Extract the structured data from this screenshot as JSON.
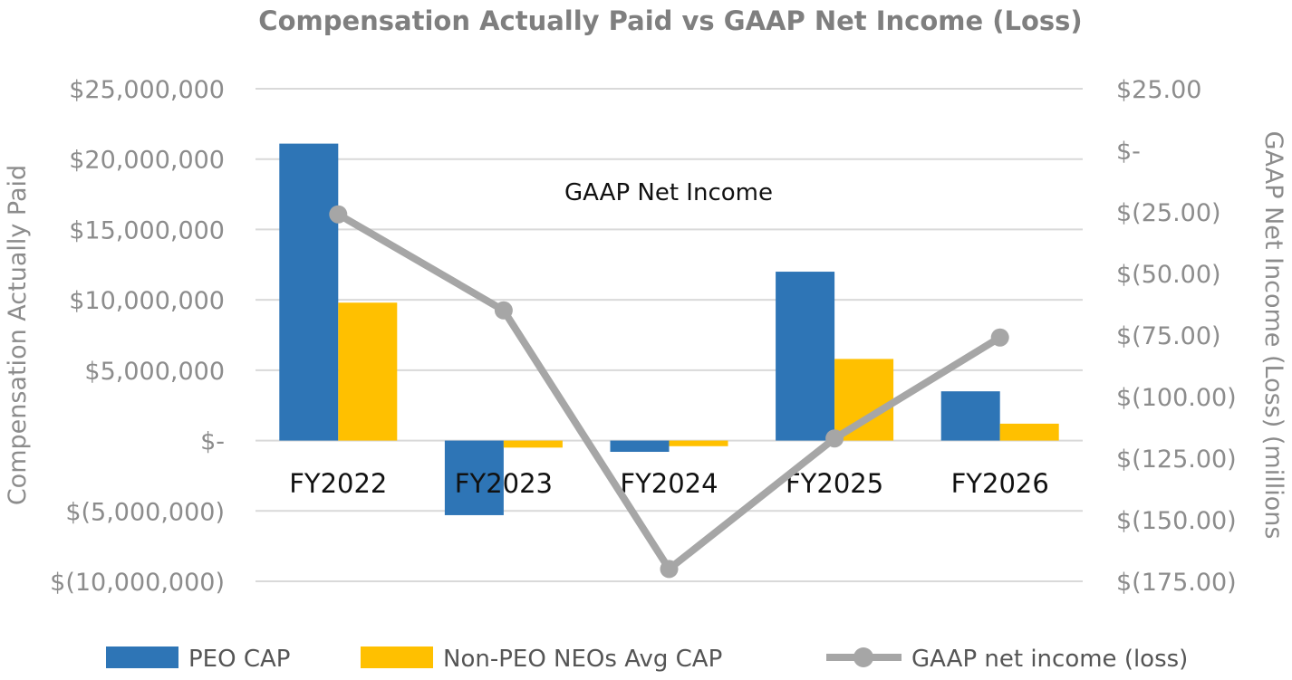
{
  "chart_data": {
    "type": "bar",
    "title": "Compensation Actually Paid vs GAAP Net Income (Loss)",
    "categories": [
      "FY2022",
      "FY2023",
      "FY2024",
      "FY2025",
      "FY2026"
    ],
    "series": [
      {
        "name": "PEO CAP",
        "kind": "bar",
        "axis": "left",
        "color": "#2e75b6",
        "values": [
          21100000,
          -5300000,
          -800000,
          12000000,
          3500000
        ]
      },
      {
        "name": "Non-PEO NEOs Avg CAP",
        "kind": "bar",
        "axis": "left",
        "color": "#ffc000",
        "values": [
          9800000,
          -500000,
          -400000,
          5800000,
          1200000
        ]
      },
      {
        "name": "GAAP net income (loss)",
        "kind": "line",
        "axis": "right",
        "color": "#a6a6a6",
        "values": [
          -26,
          -65,
          -170,
          -117,
          -76
        ]
      }
    ],
    "ylabel": "Compensation Actually Paid",
    "ylim": [
      -10000000,
      25000000
    ],
    "yticks": [
      {
        "value": 25000000,
        "label": "$25,000,000"
      },
      {
        "value": 20000000,
        "label": "$20,000,000"
      },
      {
        "value": 15000000,
        "label": "$15,000,000"
      },
      {
        "value": 10000000,
        "label": "$10,000,000"
      },
      {
        "value": 5000000,
        "label": "$5,000,000"
      },
      {
        "value": 0,
        "label": "$-"
      },
      {
        "value": -5000000,
        "label": "$(5,000,000)"
      },
      {
        "value": -10000000,
        "label": "$(10,000,000)"
      }
    ],
    "y2label": "GAAP Net Income (Loss) (millions",
    "y2lim": [
      -175,
      25
    ],
    "y2ticks": [
      {
        "value": 25,
        "label": "$25.00"
      },
      {
        "value": 0,
        "label": "$-"
      },
      {
        "value": -25,
        "label": "$(25.00)"
      },
      {
        "value": -50,
        "label": "$(50.00)"
      },
      {
        "value": -75,
        "label": "$(75.00)"
      },
      {
        "value": -100,
        "label": "$(100.00)"
      },
      {
        "value": -125,
        "label": "$(125.00)"
      },
      {
        "value": -150,
        "label": "$(150.00)"
      },
      {
        "value": -175,
        "label": "$(175.00)"
      }
    ],
    "annotation": "GAAP Net Income",
    "grid": true,
    "legend": "bottom"
  }
}
